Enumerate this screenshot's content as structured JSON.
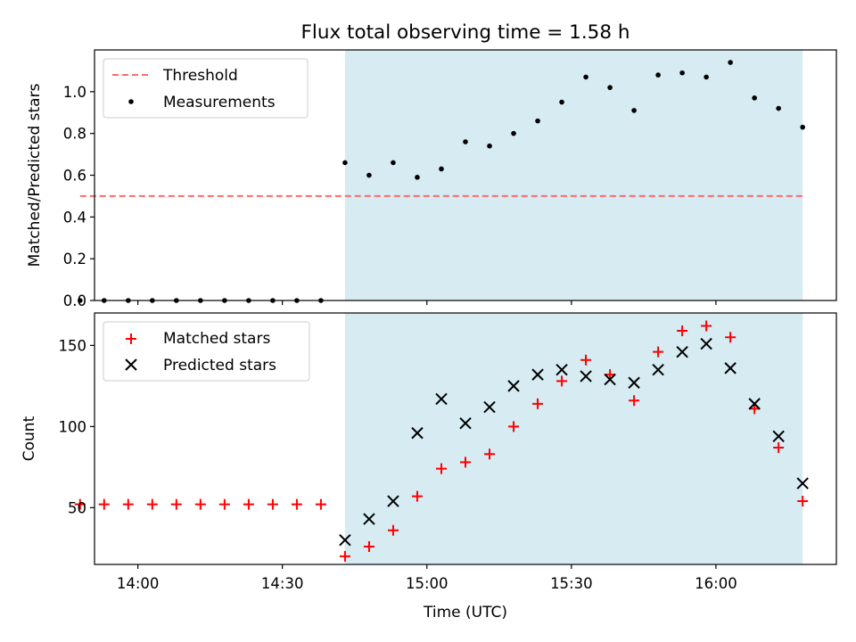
{
  "figure": {
    "title": "Flux total observing time = 1.58 h",
    "xlabel": "Time (UTC)",
    "x_ticks": [
      {
        "t": 840,
        "label": "14:00"
      },
      {
        "t": 870,
        "label": "14:30"
      },
      {
        "t": 900,
        "label": "15:00"
      },
      {
        "t": 930,
        "label": "15:30"
      },
      {
        "t": 960,
        "label": "16:00"
      }
    ],
    "xlim": [
      "13:51",
      "16:25"
    ],
    "observing_window": {
      "start": "14:43",
      "end": "16:18",
      "color": "#add8e6"
    }
  },
  "chart_data": [
    {
      "type": "scatter",
      "panel": "top",
      "ylabel": "Matched/Predicted stars",
      "ylim": [
        0,
        1.2
      ],
      "y_ticks": [
        "0.0",
        "0.2",
        "0.4",
        "0.6",
        "0.8",
        "1.0"
      ],
      "legend": {
        "position": "upper-left"
      },
      "series": [
        {
          "name": "Threshold",
          "style": "dashed-line",
          "color": "#ff6b6b",
          "x": [
            "13:48",
            "16:18"
          ],
          "y": [
            0.5,
            0.5
          ]
        },
        {
          "name": "Measurements",
          "style": "dot",
          "color": "#000000",
          "x": [
            "13:48",
            "13:53",
            "13:58",
            "14:03",
            "14:08",
            "14:13",
            "14:18",
            "14:23",
            "14:28",
            "14:33",
            "14:38",
            "14:43",
            "14:48",
            "14:53",
            "14:58",
            "15:03",
            "15:08",
            "15:13",
            "15:18",
            "15:23",
            "15:28",
            "15:33",
            "15:38",
            "15:43",
            "15:48",
            "15:53",
            "15:58",
            "16:03",
            "16:08",
            "16:13",
            "16:18"
          ],
          "y": [
            0,
            0,
            0,
            0,
            0,
            0,
            0,
            0,
            0,
            0,
            0,
            0.66,
            0.6,
            0.66,
            0.59,
            0.63,
            0.76,
            0.74,
            0.8,
            0.86,
            0.95,
            1.07,
            1.02,
            0.91,
            1.08,
            1.09,
            1.07,
            1.14,
            0.97,
            0.92,
            0.83
          ]
        }
      ]
    },
    {
      "type": "scatter",
      "panel": "bottom",
      "ylabel": "Count",
      "ylim": [
        15,
        170
      ],
      "y_ticks": [
        "50",
        "100",
        "150"
      ],
      "legend": {
        "position": "upper-left"
      },
      "series": [
        {
          "name": "Matched stars",
          "marker": "plus",
          "color": "#ff0000",
          "x": [
            "13:48",
            "13:53",
            "13:58",
            "14:03",
            "14:08",
            "14:13",
            "14:18",
            "14:23",
            "14:28",
            "14:33",
            "14:38",
            "14:43",
            "14:48",
            "14:53",
            "14:58",
            "15:03",
            "15:08",
            "15:13",
            "15:18",
            "15:23",
            "15:28",
            "15:33",
            "15:38",
            "15:43",
            "15:48",
            "15:53",
            "15:58",
            "16:03",
            "16:08",
            "16:13",
            "16:18"
          ],
          "y": [
            52,
            52,
            52,
            52,
            52,
            52,
            52,
            52,
            52,
            52,
            52,
            20,
            26,
            36,
            57,
            74,
            78,
            83,
            100,
            114,
            128,
            141,
            132,
            116,
            146,
            159,
            162,
            155,
            111,
            87,
            54
          ]
        },
        {
          "name": "Predicted stars",
          "marker": "x",
          "color": "#000000",
          "x": [
            "14:43",
            "14:48",
            "14:53",
            "14:58",
            "15:03",
            "15:08",
            "15:13",
            "15:18",
            "15:23",
            "15:28",
            "15:33",
            "15:38",
            "15:43",
            "15:48",
            "15:53",
            "15:58",
            "16:03",
            "16:08",
            "16:13",
            "16:18"
          ],
          "y": [
            30,
            43,
            54,
            96,
            117,
            102,
            112,
            125,
            132,
            135,
            131,
            129,
            127,
            135,
            146,
            151,
            136,
            114,
            94,
            65
          ]
        }
      ]
    }
  ]
}
